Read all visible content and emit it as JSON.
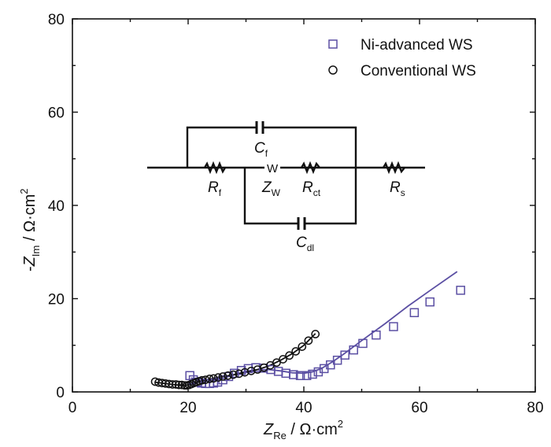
{
  "chart_data": {
    "type": "scatter",
    "x_axis": {
      "label_main": "Z",
      "label_sub": "Re",
      "label_unit": " / Ω·cm",
      "label_sup": "2",
      "range": [
        0,
        80
      ],
      "ticks": [
        "0",
        "20",
        "40",
        "60",
        "80"
      ],
      "tick_values": [
        0,
        20,
        40,
        60,
        80
      ],
      "minor_step": 10
    },
    "y_axis": {
      "label_prefix": "-",
      "label_main": "Z",
      "label_sub": "Im",
      "label_unit": " / Ω·cm",
      "label_sup": "2",
      "range": [
        0,
        80
      ],
      "ticks": [
        "0",
        "20",
        "40",
        "60",
        "80"
      ],
      "tick_values": [
        0,
        20,
        40,
        60,
        80
      ],
      "minor_step": 10
    },
    "grid": false,
    "legend_position": "top-right",
    "series": [
      {
        "name": "Ni-advanced WS",
        "marker": "square",
        "color": "#5b4fa3",
        "points": [
          [
            20.3,
            3.5
          ],
          [
            20.9,
            2.6
          ],
          [
            21.6,
            2.1
          ],
          [
            22.3,
            1.9
          ],
          [
            23.0,
            1.8
          ],
          [
            23.7,
            1.8
          ],
          [
            24.4,
            1.9
          ],
          [
            25.1,
            2.1
          ],
          [
            26.0,
            2.6
          ],
          [
            27.0,
            3.3
          ],
          [
            28.0,
            4.0
          ],
          [
            29.2,
            4.6
          ],
          [
            30.4,
            5.0
          ],
          [
            31.7,
            5.2
          ],
          [
            33.0,
            5.1
          ],
          [
            34.3,
            4.8
          ],
          [
            35.6,
            4.4
          ],
          [
            36.9,
            4.0
          ],
          [
            38.2,
            3.7
          ],
          [
            39.4,
            3.5
          ],
          [
            40.5,
            3.5
          ],
          [
            41.5,
            3.8
          ],
          [
            42.5,
            4.3
          ],
          [
            43.5,
            5.0
          ],
          [
            44.6,
            5.8
          ],
          [
            45.8,
            6.8
          ],
          [
            47.1,
            7.9
          ],
          [
            48.6,
            9.0
          ],
          [
            50.2,
            10.4
          ],
          [
            52.5,
            12.2
          ],
          [
            55.5,
            14.0
          ],
          [
            59.1,
            17.0
          ],
          [
            61.8,
            19.3
          ],
          [
            67.1,
            21.8
          ]
        ],
        "fit": [
          [
            20.5,
            3.0
          ],
          [
            22.0,
            2.2
          ],
          [
            24.0,
            2.3
          ],
          [
            26.0,
            2.9
          ],
          [
            28.0,
            3.7
          ],
          [
            30.0,
            4.4
          ],
          [
            32.0,
            4.8
          ],
          [
            34.0,
            4.8
          ],
          [
            36.0,
            4.5
          ],
          [
            38.0,
            4.1
          ],
          [
            40.0,
            4.0
          ],
          [
            41.5,
            4.3
          ],
          [
            43.0,
            5.0
          ],
          [
            45.0,
            6.5
          ],
          [
            47.0,
            8.2
          ],
          [
            50.0,
            11.0
          ],
          [
            54.0,
            14.6
          ],
          [
            58.0,
            18.4
          ],
          [
            62.0,
            21.9
          ],
          [
            66.5,
            25.8
          ]
        ]
      },
      {
        "name": "Conventional WS",
        "marker": "circle",
        "color": "#111111",
        "points": [
          [
            14.3,
            2.2
          ],
          [
            14.9,
            2.0
          ],
          [
            15.5,
            1.9
          ],
          [
            16.1,
            1.8
          ],
          [
            16.7,
            1.7
          ],
          [
            17.3,
            1.6
          ],
          [
            17.9,
            1.6
          ],
          [
            18.4,
            1.5
          ],
          [
            18.9,
            1.5
          ],
          [
            19.4,
            1.4
          ],
          [
            19.8,
            1.4
          ],
          [
            20.2,
            1.5
          ],
          [
            20.6,
            1.7
          ],
          [
            21.0,
            1.9
          ],
          [
            21.4,
            2.1
          ],
          [
            21.9,
            2.3
          ],
          [
            22.4,
            2.5
          ],
          [
            23.0,
            2.6
          ],
          [
            23.7,
            2.8
          ],
          [
            24.4,
            2.9
          ],
          [
            25.2,
            3.1
          ],
          [
            26.0,
            3.3
          ],
          [
            26.9,
            3.5
          ],
          [
            27.8,
            3.7
          ],
          [
            28.8,
            3.9
          ],
          [
            29.8,
            4.2
          ],
          [
            30.9,
            4.5
          ],
          [
            32.0,
            4.8
          ],
          [
            33.1,
            5.2
          ],
          [
            34.2,
            5.7
          ],
          [
            35.3,
            6.3
          ],
          [
            36.4,
            7.0
          ],
          [
            37.5,
            7.8
          ],
          [
            38.6,
            8.7
          ],
          [
            39.7,
            9.7
          ],
          [
            40.8,
            11.0
          ],
          [
            42.0,
            12.4
          ]
        ],
        "fit": [
          [
            14.3,
            2.1
          ],
          [
            16.0,
            1.8
          ],
          [
            18.0,
            1.5
          ],
          [
            19.5,
            1.4
          ],
          [
            20.5,
            1.6
          ],
          [
            22.0,
            2.3
          ],
          [
            24.0,
            2.8
          ],
          [
            26.0,
            3.3
          ],
          [
            28.0,
            3.7
          ],
          [
            30.0,
            4.2
          ],
          [
            32.0,
            4.8
          ],
          [
            34.0,
            5.6
          ],
          [
            36.0,
            6.8
          ],
          [
            38.0,
            8.2
          ],
          [
            40.0,
            10.0
          ],
          [
            42.0,
            12.5
          ]
        ]
      }
    ],
    "inset_circuit": {
      "labels": [
        {
          "main": "C",
          "sub": "f"
        },
        {
          "main": "R",
          "sub": "f"
        },
        {
          "main": "Z",
          "sub": "W"
        },
        {
          "main": "R",
          "sub": "ct"
        },
        {
          "main": "R",
          "sub": "s"
        },
        {
          "main": "C",
          "sub": "dl"
        }
      ],
      "warburg_symbol": "W"
    }
  }
}
